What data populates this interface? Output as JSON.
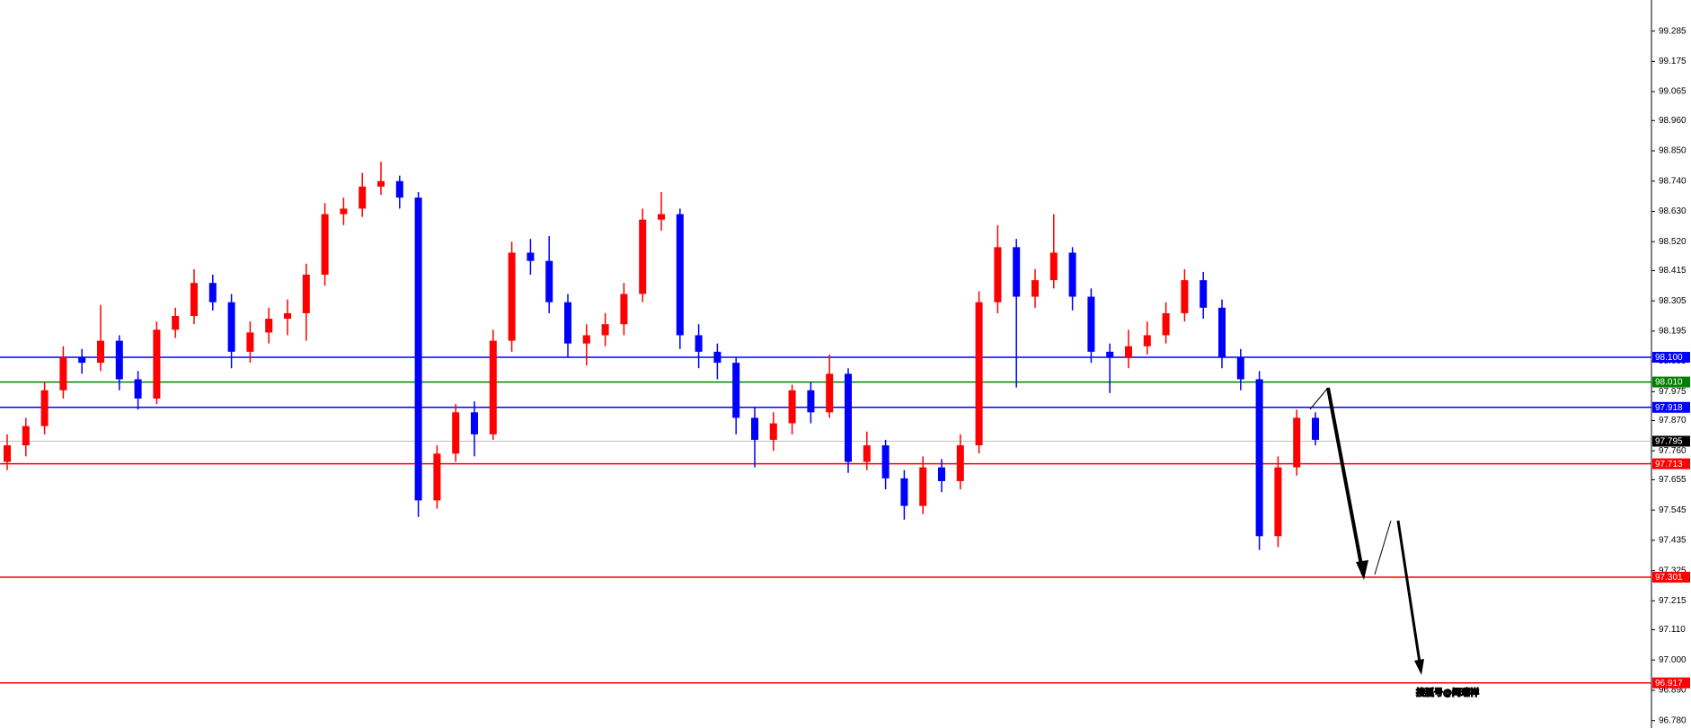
{
  "chart_data": {
    "type": "candlestick",
    "ylim": [
      96.753,
      99.398
    ],
    "yticks": [
      99.285,
      99.175,
      99.065,
      {
        "value": 98.96,
        "label": "98.960"
      },
      {
        "value": 98.85,
        "label": "98.850"
      },
      {
        "value": 98.74,
        "label": "98.740"
      },
      {
        "value": 98.63,
        "label": "98.630"
      },
      {
        "value": 98.52,
        "label": "98.520"
      },
      98.415,
      98.305,
      98.195,
      98.085,
      97.975,
      {
        "value": 97.87,
        "label": "97.870"
      },
      {
        "value": 97.76,
        "label": "97.760"
      },
      97.655,
      97.545,
      97.435,
      97.325,
      97.215,
      {
        "value": 97.11,
        "label": "97.110"
      },
      {
        "value": 97,
        "label": "97.000"
      },
      {
        "value": 96.89,
        "label": "96.890"
      },
      {
        "value": 96.78,
        "label": "96.780"
      }
    ],
    "up_color": "#ff0000",
    "down_color": "#0000ff",
    "levels": [
      {
        "value": 98.1,
        "label": "98.100",
        "color": "#0000ff"
      },
      {
        "value": 98.01,
        "label": "98.010",
        "color": "#008000"
      },
      {
        "value": 97.918,
        "color": "#0000ff"
      },
      {
        "value": 97.795,
        "color": "#c0c0c0",
        "label_color": "#000000"
      },
      {
        "value": 97.713,
        "color": "#ff0000"
      },
      {
        "value": 97.301,
        "color": "#ff0000"
      },
      {
        "value": 96.917,
        "color": "#ff0000"
      }
    ],
    "watermark": "搜狐号@闫瑞祥",
    "ohlc": [
      [
        97.72,
        97.82,
        97.69,
        97.78
      ],
      [
        97.78,
        97.88,
        97.74,
        97.85
      ],
      [
        97.85,
        98.01,
        97.82,
        97.98
      ],
      [
        97.98,
        98.14,
        97.95,
        98.1
      ],
      [
        98.1,
        98.13,
        98.04,
        98.08
      ],
      [
        98.08,
        98.29,
        98.05,
        98.16
      ],
      [
        98.16,
        98.18,
        97.98,
        98.02
      ],
      [
        98.02,
        98.05,
        97.91,
        97.95
      ],
      [
        97.95,
        98.23,
        97.93,
        98.2
      ],
      [
        98.2,
        98.28,
        98.17,
        98.25
      ],
      [
        98.25,
        98.42,
        98.22,
        98.37
      ],
      [
        98.37,
        98.4,
        98.27,
        98.3
      ],
      [
        98.3,
        98.33,
        98.06,
        98.12
      ],
      [
        98.12,
        98.23,
        98.08,
        98.19
      ],
      [
        98.19,
        98.28,
        98.15,
        98.24
      ],
      [
        98.24,
        98.31,
        98.18,
        98.26
      ],
      [
        98.26,
        98.44,
        98.16,
        98.4
      ],
      [
        98.4,
        98.66,
        98.36,
        98.62
      ],
      [
        98.62,
        98.68,
        98.58,
        98.64
      ],
      [
        98.64,
        98.77,
        98.61,
        98.72
      ],
      [
        98.72,
        98.81,
        98.69,
        98.74
      ],
      [
        98.74,
        98.76,
        98.64,
        98.68
      ],
      [
        98.68,
        98.7,
        97.52,
        97.58
      ],
      [
        97.58,
        97.78,
        97.55,
        97.75
      ],
      [
        97.75,
        97.93,
        97.72,
        97.9
      ],
      [
        97.9,
        97.94,
        97.74,
        97.82
      ],
      [
        97.82,
        98.2,
        97.8,
        98.16
      ],
      [
        98.16,
        98.52,
        98.12,
        98.48
      ],
      [
        98.48,
        98.53,
        98.4,
        98.45
      ],
      [
        98.45,
        98.54,
        98.26,
        98.3
      ],
      [
        98.3,
        98.33,
        98.1,
        98.15
      ],
      [
        98.15,
        98.22,
        98.07,
        98.18
      ],
      [
        98.18,
        98.26,
        98.14,
        98.22
      ],
      [
        98.22,
        98.37,
        98.18,
        98.33
      ],
      [
        98.33,
        98.64,
        98.3,
        98.6
      ],
      [
        98.6,
        98.7,
        98.56,
        98.62
      ],
      [
        98.62,
        98.64,
        98.13,
        98.18
      ],
      [
        98.18,
        98.22,
        98.06,
        98.12
      ],
      [
        98.12,
        98.15,
        98.02,
        98.08
      ],
      [
        98.08,
        98.1,
        97.82,
        97.88
      ],
      [
        97.88,
        97.92,
        97.7,
        97.8
      ],
      [
        97.8,
        97.9,
        97.76,
        97.86
      ],
      [
        97.86,
        98,
        97.82,
        97.98
      ],
      [
        97.98,
        98.01,
        97.86,
        97.9
      ],
      [
        97.9,
        98.11,
        97.88,
        98.04
      ],
      [
        98.04,
        98.06,
        97.68,
        97.72
      ],
      [
        97.72,
        97.83,
        97.69,
        97.78
      ],
      [
        97.78,
        97.8,
        97.62,
        97.66
      ],
      [
        97.66,
        97.69,
        97.51,
        97.56
      ],
      [
        97.56,
        97.74,
        97.53,
        97.7
      ],
      [
        97.7,
        97.73,
        97.61,
        97.65
      ],
      [
        97.65,
        97.82,
        97.62,
        97.78
      ],
      [
        97.78,
        98.34,
        97.75,
        98.3
      ],
      [
        98.3,
        98.58,
        98.26,
        98.5
      ],
      [
        98.5,
        98.53,
        97.99,
        98.32
      ],
      [
        98.32,
        98.42,
        98.28,
        98.38
      ],
      [
        98.38,
        98.62,
        98.35,
        98.48
      ],
      [
        98.48,
        98.5,
        98.27,
        98.32
      ],
      [
        98.32,
        98.35,
        98.08,
        98.12
      ],
      [
        98.12,
        98.15,
        97.97,
        98.1
      ],
      [
        98.1,
        98.2,
        98.06,
        98.14
      ],
      [
        98.14,
        98.23,
        98.11,
        98.18
      ],
      [
        98.18,
        98.3,
        98.15,
        98.26
      ],
      [
        98.26,
        98.42,
        98.23,
        98.38
      ],
      [
        98.38,
        98.41,
        98.24,
        98.28
      ],
      [
        98.28,
        98.31,
        98.06,
        98.1
      ],
      [
        98.1,
        98.13,
        97.98,
        98.02
      ],
      [
        98.02,
        98.05,
        97.4,
        97.45
      ],
      [
        97.45,
        97.74,
        97.41,
        97.7
      ],
      [
        97.7,
        97.91,
        97.67,
        97.88
      ],
      [
        97.88,
        97.9,
        97.78,
        97.8
      ]
    ]
  }
}
